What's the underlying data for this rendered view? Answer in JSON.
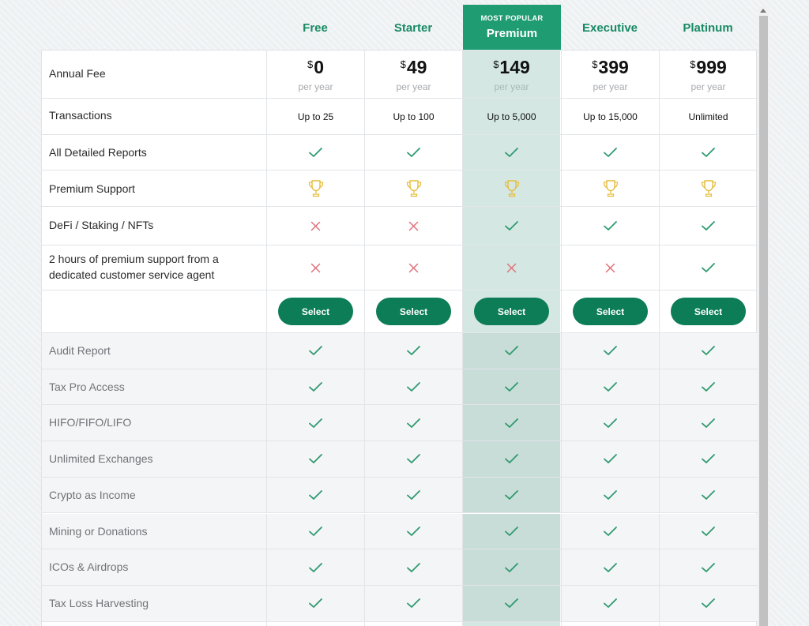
{
  "popular_tag": "MOST POPULAR",
  "plans": [
    {
      "name": "Free",
      "currency": "$",
      "price": "0",
      "period": "per year",
      "transactions": "Up to 25",
      "select_label": "Select"
    },
    {
      "name": "Starter",
      "currency": "$",
      "price": "49",
      "period": "per year",
      "transactions": "Up to 100",
      "select_label": "Select"
    },
    {
      "name": "Premium",
      "currency": "$",
      "price": "149",
      "period": "per year",
      "transactions": "Up to 5,000",
      "select_label": "Select",
      "popular": true
    },
    {
      "name": "Executive",
      "currency": "$",
      "price": "399",
      "period": "per year",
      "transactions": "Up to 15,000",
      "select_label": "Select"
    },
    {
      "name": "Platinum",
      "currency": "$",
      "price": "999",
      "period": "per year",
      "transactions": "Unlimited",
      "select_label": "Select"
    }
  ],
  "row_labels": {
    "annual_fee": "Annual Fee",
    "transactions": "Transactions"
  },
  "features": [
    {
      "label": "All Detailed Reports",
      "values": [
        "check",
        "check",
        "check",
        "check",
        "check"
      ]
    },
    {
      "label": "Premium Support",
      "values": [
        "trophy",
        "trophy",
        "trophy",
        "trophy",
        "trophy"
      ]
    },
    {
      "label": "DeFi / Staking / NFTs",
      "values": [
        "cross",
        "cross",
        "check",
        "check",
        "check"
      ]
    },
    {
      "label": "2 hours of premium support from a dedicated customer service agent",
      "values": [
        "cross",
        "cross",
        "cross",
        "cross",
        "check"
      ]
    }
  ],
  "included_features": [
    {
      "label": "Audit Report",
      "values": [
        "check",
        "check",
        "check",
        "check",
        "check"
      ]
    },
    {
      "label": "Tax Pro Access",
      "values": [
        "check",
        "check",
        "check",
        "check",
        "check"
      ]
    },
    {
      "label": "HIFO/FIFO/LIFO",
      "values": [
        "check",
        "check",
        "check",
        "check",
        "check"
      ]
    },
    {
      "label": "Unlimited Exchanges",
      "values": [
        "check",
        "check",
        "check",
        "check",
        "check"
      ]
    },
    {
      "label": "Crypto as Income",
      "values": [
        "check",
        "check",
        "check",
        "check",
        "check"
      ]
    },
    {
      "label": "Mining or Donations",
      "values": [
        "check",
        "check",
        "check",
        "check",
        "check"
      ]
    },
    {
      "label": "ICOs & Airdrops",
      "values": [
        "check",
        "check",
        "check",
        "check",
        "check"
      ]
    },
    {
      "label": "Tax Loss Harvesting",
      "values": [
        "check",
        "check",
        "check",
        "check",
        "check"
      ]
    }
  ],
  "colors": {
    "brand_green": "#0c7d56",
    "plan_name_green": "#178a62",
    "check_green": "#2e9a6f",
    "cross_red": "#e0707a",
    "trophy_gold": "#e6bd3c",
    "popular_header": "#1f9c71",
    "popular_column": "#d4e7e3"
  }
}
